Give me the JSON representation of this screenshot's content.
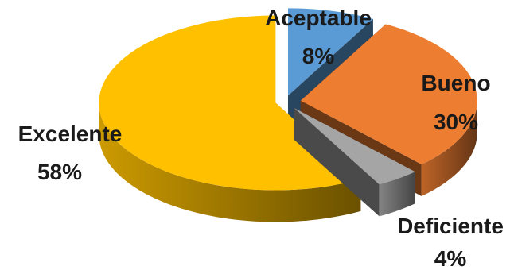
{
  "chart_data": {
    "type": "pie",
    "style": "3d-exploded",
    "slices": [
      {
        "label": "Aceptable",
        "value": 8,
        "display": "8%",
        "color": "#5b9bd5"
      },
      {
        "label": "Bueno",
        "value": 30,
        "display": "30%",
        "color": "#ed7d31"
      },
      {
        "label": "Deficiente",
        "value": 4,
        "display": "4%",
        "color": "#a5a5a5"
      },
      {
        "label": "Excelente",
        "value": 58,
        "display": "58%",
        "color": "#ffc000"
      }
    ],
    "legend": "none",
    "data_labels": "category-and-percent"
  }
}
